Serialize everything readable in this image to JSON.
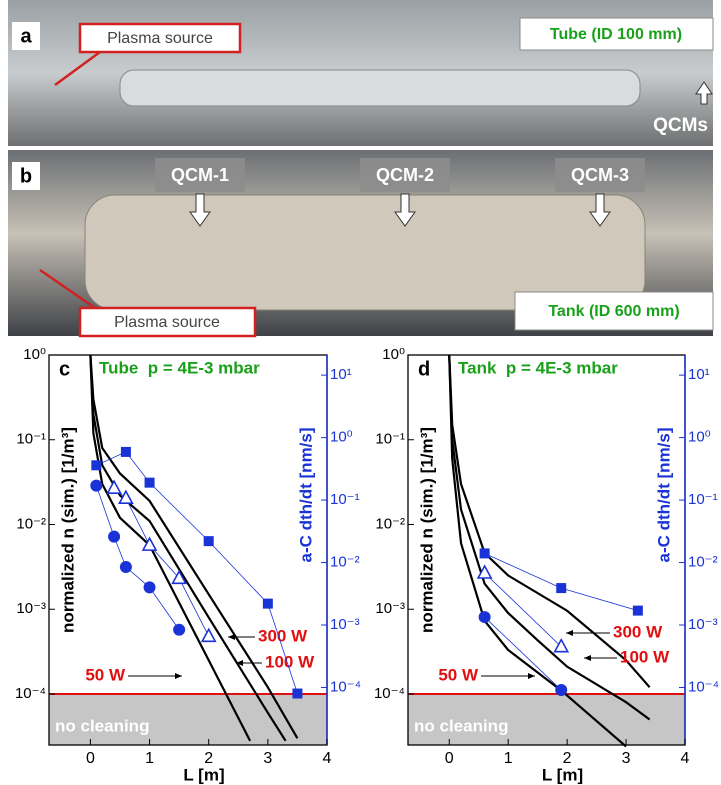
{
  "photos": [
    {
      "label": "a",
      "annotations": [
        "Plasma source",
        "Tube (ID 100 mm)",
        "QCMs"
      ]
    },
    {
      "label": "b",
      "annotations": [
        "QCM-1",
        "QCM-2",
        "QCM-3",
        "Plasma source",
        "Tank (ID 600 mm)"
      ]
    }
  ],
  "chart_data": [
    {
      "type": "line",
      "panel": "c",
      "title": "Tube  p = 4E-3 mbar",
      "xlabel": "L [m]",
      "ylabel": "normalized n (sim.) [1/m³]",
      "y2label": "a-C dth/dt [nm/s]",
      "xlim": [
        -0.7,
        4
      ],
      "xticks": [
        0,
        1,
        2,
        3,
        4
      ],
      "ylim": [
        2.5e-05,
        1
      ],
      "log_y": true,
      "yticks": [
        {
          "value": 0.0001,
          "label": "10⁻⁴"
        },
        {
          "value": 0.001,
          "label": "10⁻³"
        },
        {
          "value": 0.01,
          "label": "10⁻²"
        },
        {
          "value": 0.1,
          "label": "10⁻¹"
        },
        {
          "value": 1,
          "label": "10⁰"
        }
      ],
      "y2lim": [
        1.2e-05,
        21
      ],
      "y2ticks": [
        {
          "value": 0.0001,
          "label": "10⁻⁴"
        },
        {
          "value": 0.001,
          "label": "10⁻³"
        },
        {
          "value": 0.01,
          "label": "10⁻²"
        },
        {
          "value": 0.1,
          "label": "10⁻¹"
        },
        {
          "value": 1,
          "label": "10⁰"
        },
        {
          "value": 10,
          "label": "10¹"
        }
      ],
      "threshold": {
        "value": 0.0001,
        "label": "no cleaning",
        "color": "#e01010"
      },
      "series": [
        {
          "name": "300 W",
          "color": "#000000",
          "x": [
            0,
            0.05,
            0.2,
            0.5,
            1,
            2,
            3,
            3.5
          ],
          "values": [
            1,
            0.3,
            0.08,
            0.04,
            0.019,
            0.0015,
            0.00012,
            3e-05
          ]
        },
        {
          "name": "100 W",
          "color": "#000000",
          "x": [
            0,
            0.05,
            0.2,
            0.5,
            1,
            2,
            3,
            3.3
          ],
          "values": [
            1,
            0.2,
            0.05,
            0.022,
            0.011,
            0.0008,
            6e-05,
            2.8e-05
          ]
        },
        {
          "name": "50 W",
          "color": "#000000",
          "x": [
            0,
            0.05,
            0.2,
            0.5,
            1,
            2,
            2.7
          ],
          "values": [
            1,
            0.12,
            0.03,
            0.012,
            0.0057,
            0.00025,
            2.8e-05
          ]
        },
        {
          "axis": "y2",
          "marker": "square",
          "color": "#1a33d6",
          "x": [
            0.1,
            0.6,
            1,
            2,
            3,
            3.5
          ],
          "values": [
            0.36,
            0.59,
            0.19,
            0.022,
            0.0022,
            8e-05
          ]
        },
        {
          "axis": "y2",
          "marker": "triangle",
          "color": "#1a33d6",
          "x": [
            0.4,
            0.6,
            1,
            1.5,
            2
          ],
          "values": [
            0.155,
            0.107,
            0.019,
            0.0056,
            0.00066
          ]
        },
        {
          "axis": "y2",
          "marker": "circle",
          "color": "#1a33d6",
          "x": [
            0.1,
            0.4,
            0.6,
            1,
            1.5
          ],
          "values": [
            0.17,
            0.026,
            0.0085,
            0.004,
            0.00084
          ]
        }
      ]
    },
    {
      "type": "line",
      "panel": "d",
      "title": "Tank  p = 4E-3 mbar",
      "xlabel": "L [m]",
      "ylabel": "normalized n (sim.) [1/m³]",
      "y2label": "a-C dth/dt [nm/s]",
      "xlim": [
        -0.7,
        4
      ],
      "xticks": [
        0,
        1,
        2,
        3,
        4
      ],
      "ylim": [
        2.5e-05,
        1
      ],
      "log_y": true,
      "yticks": [
        {
          "value": 0.0001,
          "label": "10⁻⁴"
        },
        {
          "value": 0.001,
          "label": "10⁻³"
        },
        {
          "value": 0.01,
          "label": "10⁻²"
        },
        {
          "value": 0.1,
          "label": "10⁻¹"
        },
        {
          "value": 1,
          "label": "10⁰"
        }
      ],
      "y2lim": [
        1.2e-05,
        21
      ],
      "y2ticks": [
        {
          "value": 0.0001,
          "label": "10⁻⁴"
        },
        {
          "value": 0.001,
          "label": "10⁻³"
        },
        {
          "value": 0.01,
          "label": "10⁻²"
        },
        {
          "value": 0.1,
          "label": "10⁻¹"
        },
        {
          "value": 1,
          "label": "10⁰"
        },
        {
          "value": 10,
          "label": "10¹"
        }
      ],
      "threshold": {
        "value": 0.0001,
        "label": "no cleaning",
        "color": "#e01010"
      },
      "series": [
        {
          "name": "300 W",
          "color": "#000000",
          "x": [
            0,
            0.05,
            0.2,
            0.6,
            1,
            2,
            3,
            3.4
          ],
          "values": [
            1,
            0.15,
            0.03,
            0.0046,
            0.0025,
            0.00096,
            0.00025,
            0.00012
          ]
        },
        {
          "name": "100 W",
          "color": "#000000",
          "x": [
            0,
            0.05,
            0.2,
            0.6,
            1,
            1.5,
            2,
            3,
            3.4
          ],
          "values": [
            1,
            0.1,
            0.015,
            0.002,
            0.0009,
            0.00043,
            0.00021,
            8e-05,
            5e-05
          ]
        },
        {
          "name": "50 W",
          "color": "#000000",
          "x": [
            0,
            0.05,
            0.2,
            0.6,
            1,
            1.9,
            3
          ],
          "values": [
            1,
            0.06,
            0.006,
            0.00073,
            0.00033,
            0.00011,
            2.4e-05
          ]
        },
        {
          "axis": "y2",
          "marker": "square",
          "color": "#1a33d6",
          "x": [
            0.6,
            1.9,
            3.2
          ],
          "values": [
            0.014,
            0.0039,
            0.0017
          ]
        },
        {
          "axis": "y2",
          "marker": "triangle",
          "color": "#1a33d6",
          "x": [
            0.6,
            1.9
          ],
          "values": [
            0.0068,
            0.00045
          ]
        },
        {
          "axis": "y2",
          "marker": "circle",
          "color": "#1a33d6",
          "x": [
            0.6,
            1.9
          ],
          "values": [
            0.00134,
            9.1e-05
          ]
        }
      ]
    }
  ]
}
